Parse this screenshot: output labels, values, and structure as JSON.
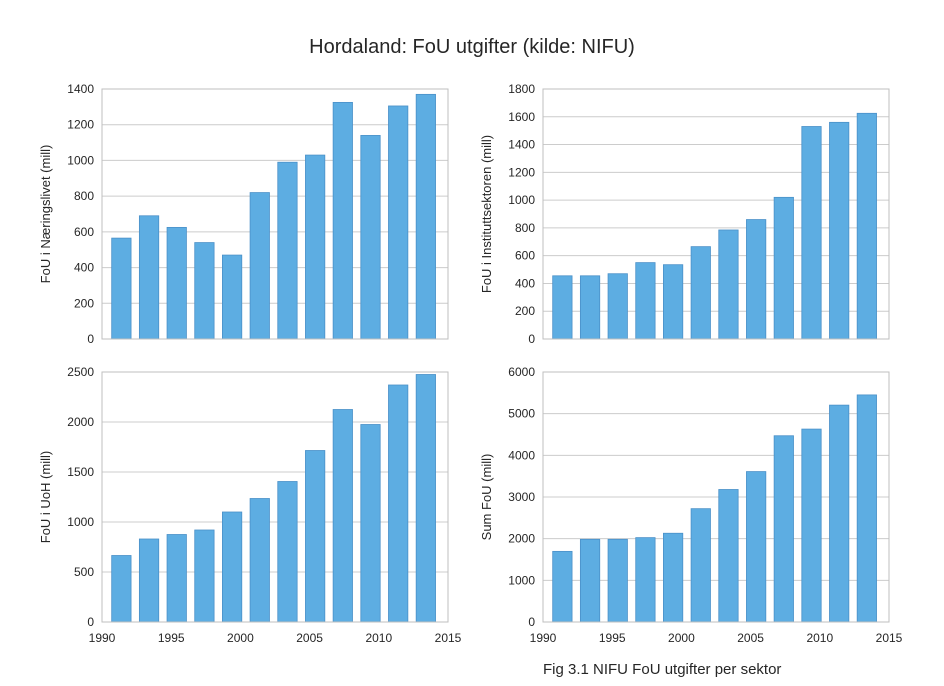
{
  "figure": {
    "title": "Hordaland: FoU utgifter (kilde: NIFU)",
    "caption": "Fig 3.1 NIFU FoU utgifter per sektor",
    "bar_color": "#5DADE2",
    "bar_edge": "#4A90C8",
    "grid_color": "#cccccc",
    "frame_color": "#bfbfbf"
  },
  "chart_data": [
    {
      "type": "bar",
      "title": "",
      "ylabel": "FoU i Næringslivet (mill)",
      "xlabel": "",
      "grid": true,
      "xlim": [
        1990,
        2015
      ],
      "ylim": [
        0,
        1400
      ],
      "yticks": [
        0,
        200,
        400,
        600,
        800,
        1000,
        1200,
        1400
      ],
      "xticks": [],
      "x": [
        1991,
        1993,
        1995,
        1997,
        1999,
        2001,
        2003,
        2005,
        2007,
        2009,
        2011,
        2013
      ],
      "values": [
        565,
        690,
        625,
        540,
        470,
        820,
        990,
        1030,
        1325,
        1140,
        1305,
        1370
      ]
    },
    {
      "type": "bar",
      "title": "",
      "ylabel": "FoU i Instituttsektoren (mill)",
      "xlabel": "",
      "grid": true,
      "xlim": [
        1990,
        2015
      ],
      "ylim": [
        0,
        1800
      ],
      "yticks": [
        0,
        200,
        400,
        600,
        800,
        1000,
        1200,
        1400,
        1600,
        1800
      ],
      "xticks": [],
      "x": [
        1991,
        1993,
        1995,
        1997,
        1999,
        2001,
        2003,
        2005,
        2007,
        2009,
        2011,
        2013
      ],
      "values": [
        455,
        455,
        470,
        550,
        535,
        665,
        785,
        860,
        1020,
        1530,
        1560,
        1625
      ]
    },
    {
      "type": "bar",
      "title": "",
      "ylabel": "FoU i UoH (mill)",
      "xlabel": "",
      "grid": true,
      "xlim": [
        1990,
        2015
      ],
      "ylim": [
        0,
        2500
      ],
      "yticks": [
        0,
        500,
        1000,
        1500,
        2000,
        2500
      ],
      "xticks": [
        1990,
        1995,
        2000,
        2005,
        2010,
        2015
      ],
      "x": [
        1991,
        1993,
        1995,
        1997,
        1999,
        2001,
        2003,
        2005,
        2007,
        2009,
        2011,
        2013
      ],
      "values": [
        665,
        830,
        875,
        920,
        1100,
        1235,
        1405,
        1715,
        2125,
        1975,
        2370,
        2475
      ]
    },
    {
      "type": "bar",
      "title": "",
      "ylabel": "Sum FoU (mill)",
      "xlabel": "",
      "grid": true,
      "xlim": [
        1990,
        2015
      ],
      "ylim": [
        0,
        6000
      ],
      "yticks": [
        0,
        1000,
        2000,
        3000,
        4000,
        5000,
        6000
      ],
      "xticks": [
        1990,
        1995,
        2000,
        2005,
        2010,
        2015
      ],
      "x": [
        1991,
        1993,
        1995,
        1997,
        1999,
        2001,
        2003,
        2005,
        2007,
        2009,
        2011,
        2013
      ],
      "values": [
        1695,
        1985,
        1985,
        2025,
        2130,
        2720,
        3180,
        3610,
        4470,
        4630,
        5205,
        5450
      ]
    }
  ]
}
